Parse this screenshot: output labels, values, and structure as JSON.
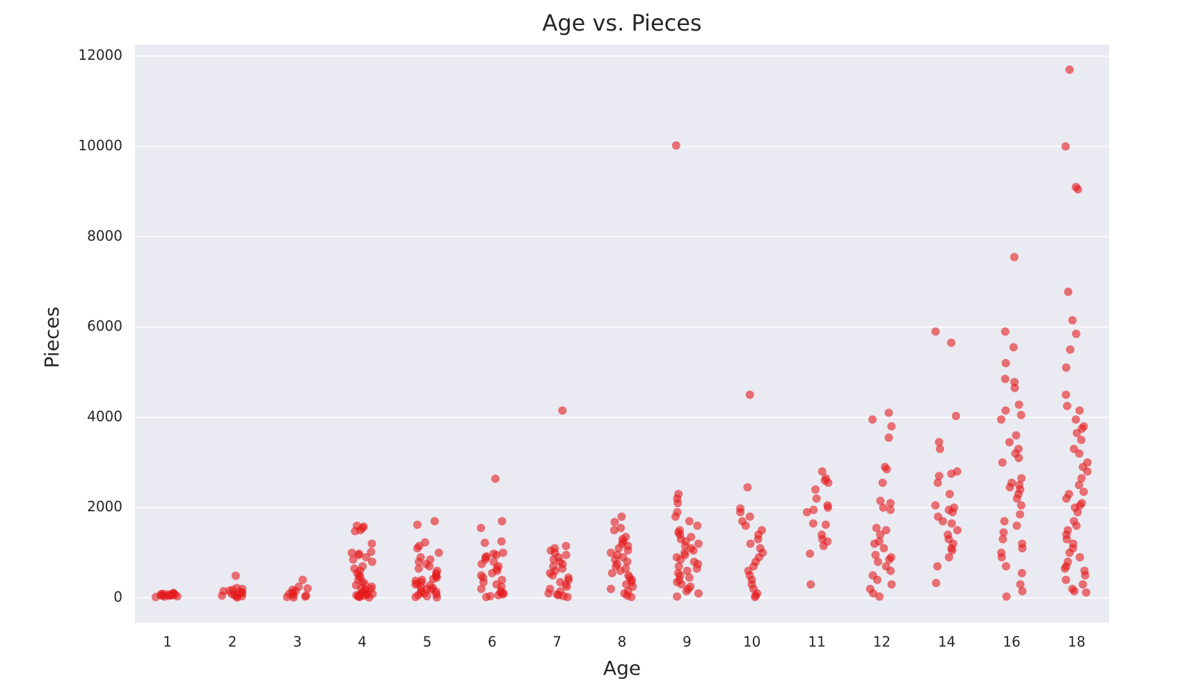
{
  "chart_data": {
    "type": "strip",
    "title": "Age vs. Pieces",
    "x_label": "Age",
    "y_label": "Pieces",
    "color": "#e41a1c",
    "opacity": 0.6,
    "grid": true,
    "ylim": [
      -546,
      12256
    ],
    "yticks": [
      0,
      2000,
      4000,
      6000,
      8000,
      10000,
      12000
    ],
    "categories": [
      "1",
      "2",
      "3",
      "4",
      "5",
      "6",
      "7",
      "8",
      "9",
      "10",
      "11",
      "12",
      "14",
      "16",
      "18"
    ],
    "values": [
      [
        20,
        35,
        50,
        60,
        70,
        80,
        90,
        100,
        110,
        45,
        55,
        65,
        75,
        85,
        30
      ],
      [
        10,
        30,
        50,
        70,
        90,
        110,
        130,
        150,
        180,
        200,
        220,
        490,
        60,
        40,
        120,
        160
      ],
      [
        10,
        30,
        60,
        90,
        120,
        150,
        180,
        210,
        250,
        400,
        50,
        20
      ],
      [
        1600,
        1580,
        1550,
        1500,
        1480,
        1200,
        1000,
        980,
        950,
        900,
        800,
        700,
        650,
        600,
        550,
        500,
        450,
        400,
        350,
        300,
        280,
        250,
        220,
        200,
        180,
        150,
        130,
        110,
        100,
        90,
        80,
        70,
        60,
        50,
        40,
        30,
        20,
        10,
        1020,
        850
      ],
      [
        1700,
        1620,
        1230,
        1150,
        1100,
        1000,
        900,
        850,
        800,
        750,
        700,
        650,
        600,
        550,
        500,
        480,
        450,
        420,
        400,
        380,
        350,
        320,
        300,
        280,
        250,
        220,
        200,
        180,
        160,
        140,
        120,
        100,
        80,
        60,
        40,
        20,
        10
      ],
      [
        2640,
        1700,
        1550,
        1250,
        1220,
        1000,
        980,
        950,
        920,
        900,
        850,
        800,
        750,
        700,
        650,
        600,
        550,
        500,
        450,
        400,
        350,
        300,
        250,
        200,
        150,
        120,
        100,
        80,
        60,
        40,
        20
      ],
      [
        4150,
        1150,
        1100,
        1050,
        1000,
        950,
        900,
        850,
        800,
        750,
        700,
        650,
        600,
        550,
        500,
        450,
        400,
        350,
        300,
        250,
        200,
        150,
        100,
        80,
        60,
        40,
        20
      ],
      [
        1800,
        1680,
        1550,
        1500,
        1350,
        1300,
        1250,
        1200,
        1150,
        1100,
        1050,
        1000,
        950,
        900,
        850,
        800,
        750,
        700,
        650,
        600,
        550,
        500,
        450,
        400,
        350,
        300,
        250,
        200,
        150,
        100,
        50,
        20
      ],
      [
        10020,
        2300,
        2200,
        2100,
        1900,
        1800,
        1700,
        1600,
        1500,
        1450,
        1400,
        1350,
        1300,
        1250,
        1200,
        1150,
        1100,
        1050,
        1000,
        950,
        900,
        850,
        800,
        750,
        700,
        650,
        600,
        550,
        500,
        450,
        400,
        350,
        300,
        250,
        200,
        150,
        100,
        30
      ],
      [
        4500,
        2450,
        1980,
        1900,
        1800,
        1700,
        1600,
        1500,
        1400,
        1300,
        1200,
        1100,
        1000,
        900,
        800,
        700,
        600,
        500,
        400,
        300,
        200,
        100,
        50,
        20
      ],
      [
        2800,
        2650,
        2600,
        2550,
        2400,
        2200,
        2050,
        2000,
        1950,
        1900,
        1650,
        1620,
        1400,
        1300,
        1250,
        1150,
        980,
        300
      ],
      [
        4100,
        3950,
        3800,
        3550,
        2900,
        2850,
        2550,
        2150,
        2100,
        2000,
        1950,
        1550,
        1500,
        1400,
        1250,
        1200,
        1100,
        950,
        900,
        850,
        800,
        700,
        600,
        500,
        400,
        300,
        200,
        100,
        30
      ],
      [
        5900,
        5650,
        4030,
        3450,
        3300,
        2800,
        2750,
        2700,
        2550,
        2300,
        2050,
        2000,
        1950,
        1900,
        1800,
        1700,
        1650,
        1500,
        1400,
        1300,
        1200,
        1100,
        1050,
        900,
        700,
        330
      ],
      [
        7550,
        5900,
        5550,
        5200,
        4850,
        4780,
        4650,
        4280,
        4150,
        4050,
        3950,
        3600,
        3450,
        3300,
        3200,
        3100,
        3000,
        2650,
        2550,
        2500,
        2450,
        2400,
        2300,
        2200,
        2050,
        1850,
        1700,
        1600,
        1450,
        1300,
        1200,
        1100,
        1000,
        900,
        700,
        550,
        300,
        150,
        30
      ],
      [
        11700,
        10000,
        9100,
        9050,
        6780,
        6150,
        5850,
        5500,
        5100,
        4500,
        4250,
        4150,
        3950,
        3800,
        3750,
        3650,
        3500,
        3300,
        3200,
        3000,
        2900,
        2800,
        2650,
        2500,
        2350,
        2300,
        2200,
        2100,
        2050,
        2000,
        1900,
        1700,
        1600,
        1500,
        1400,
        1300,
        1200,
        1100,
        1000,
        900,
        800,
        700,
        650,
        600,
        500,
        400,
        300,
        200,
        150,
        120
      ]
    ]
  }
}
